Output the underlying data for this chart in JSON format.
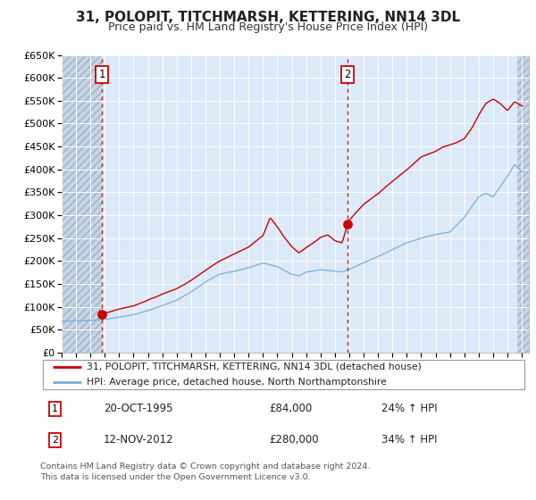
{
  "title": "31, POLOPIT, TITCHMARSH, KETTERING, NN14 3DL",
  "subtitle": "Price paid vs. HM Land Registry's House Price Index (HPI)",
  "xlim_start": 1993.0,
  "xlim_end": 2025.5,
  "ylim_min": 0,
  "ylim_max": 650000,
  "yticks": [
    0,
    50000,
    100000,
    150000,
    200000,
    250000,
    300000,
    350000,
    400000,
    450000,
    500000,
    550000,
    600000,
    650000
  ],
  "ytick_labels": [
    "£0",
    "£50K",
    "£100K",
    "£150K",
    "£200K",
    "£250K",
    "£300K",
    "£350K",
    "£400K",
    "£450K",
    "£500K",
    "£550K",
    "£600K",
    "£650K"
  ],
  "sale1_x": 1995.8,
  "sale1_y": 84000,
  "sale2_x": 2012.87,
  "sale2_y": 280000,
  "sale_color": "#cc0000",
  "hpi_color": "#7aadd4",
  "bg_color": "#dce9f8",
  "hatch_bg": "#c5d5e8",
  "grid_color": "#ffffff",
  "legend_label_red": "31, POLOPIT, TITCHMARSH, KETTERING, NN14 3DL (detached house)",
  "legend_label_blue": "HPI: Average price, detached house, North Northamptonshire",
  "ann1_label": "1",
  "ann1_date": "20-OCT-1995",
  "ann1_price": "£84,000",
  "ann1_hpi": "24% ↑ HPI",
  "ann2_label": "2",
  "ann2_date": "12-NOV-2012",
  "ann2_price": "£280,000",
  "ann2_hpi": "34% ↑ HPI",
  "footer": "Contains HM Land Registry data © Crown copyright and database right 2024.\nThis data is licensed under the Open Government Licence v3.0."
}
